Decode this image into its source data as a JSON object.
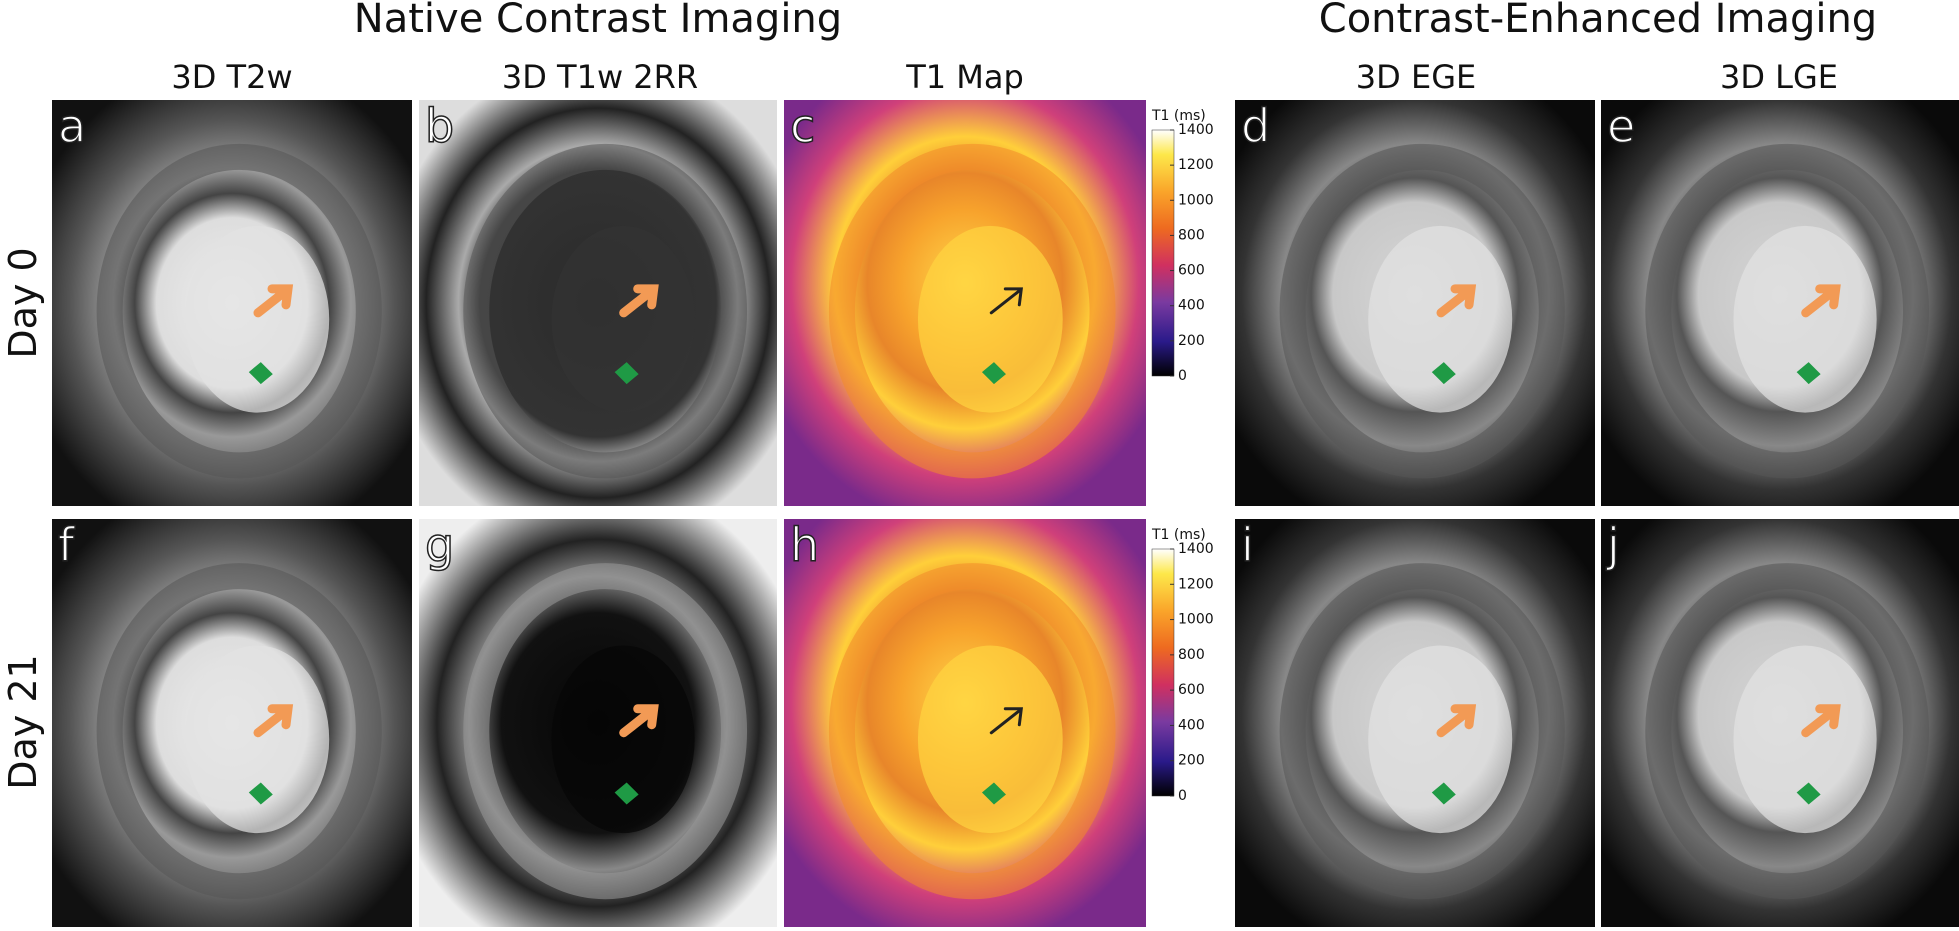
{
  "headers": {
    "groups": [
      "Native Contrast Imaging",
      "Contrast-Enhanced Imaging"
    ],
    "columns": [
      "3D T2w",
      "3D T1w 2RR",
      "T1 Map",
      "3D EGE",
      "3D LGE"
    ]
  },
  "rows": [
    "Day 0",
    "Day 21"
  ],
  "panels": [
    [
      "a",
      "b",
      "c",
      "d",
      "e"
    ],
    [
      "f",
      "g",
      "h",
      "i",
      "j"
    ]
  ],
  "colorbar": {
    "label": "T1 (ms)",
    "ticks": [
      0,
      200,
      400,
      600,
      800,
      1000,
      1200,
      1400
    ]
  }
}
